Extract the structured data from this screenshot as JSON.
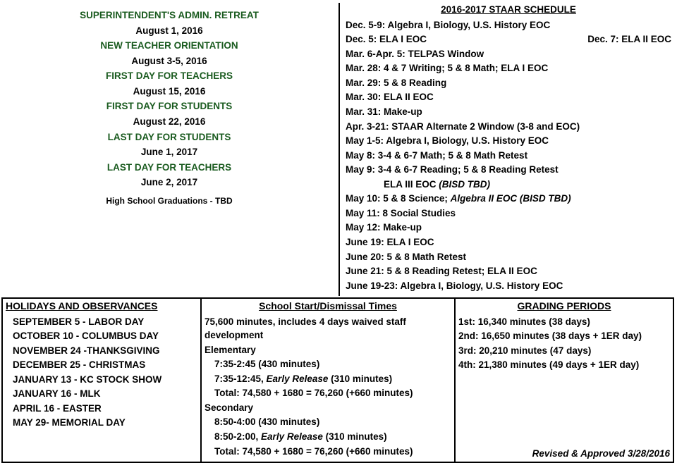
{
  "keyDates": {
    "items": [
      {
        "header": "SUPERINTENDENT'S ADMIN. RETREAT",
        "date": "August 1, 2016"
      },
      {
        "header": "NEW TEACHER ORIENTATION",
        "date": "August 3-5, 2016"
      },
      {
        "header": "FIRST DAY FOR TEACHERS",
        "date": "August 15, 2016"
      },
      {
        "header": "FIRST DAY FOR STUDENTS",
        "date": "August 22, 2016"
      },
      {
        "header": "LAST DAY FOR STUDENTS",
        "date": "June 1, 2017"
      },
      {
        "header": "LAST DAY FOR TEACHERS",
        "date": "June 2, 2017"
      }
    ],
    "graduation": "High School Graduations - TBD",
    "header_color": "#1a5b1f"
  },
  "staar": {
    "title": "2016-2017 STAAR SCHEDULE",
    "lines": [
      "Dec. 5-9:  Algebra I, Biology, U.S. History EOC",
      {
        "left": "Dec. 5:  ELA I EOC",
        "right": "Dec. 7:  ELA II EOC"
      },
      "Mar. 6-Apr. 5:  TELPAS Window",
      "Mar. 28:  4 & 7 Writing; 5 & 8 Math; ELA I EOC",
      "Mar. 29:  5 & 8 Reading",
      "Mar. 30:  ELA II EOC",
      "Mar. 31:  Make-up",
      "Apr. 3-21:  STAAR Alternate 2 Window (3-8 and EOC)",
      "May 1-5:  Algebra I, Biology, U.S. History EOC",
      "May 8:  3-4 & 6-7 Math; 5 & 8 Math Retest",
      "May 9:  3-4 & 6-7 Reading; 5 & 8 Reading Retest",
      {
        "indent": true,
        "main": "ELA III EOC ",
        "sub": "(BISD TBD)"
      },
      {
        "main": "May 10:  5 & 8 Science; ",
        "sub": "Algebra II EOC (BISD TBD)"
      },
      "May 11:  8 Social Studies",
      "May 12:  Make-up",
      "June 19:  ELA I EOC",
      "June 20:  5 & 8 Math Retest",
      "June 21:  5 & 8 Reading Retest; ELA II EOC",
      "June 19-23:  Algebra I, Biology, U.S. History EOC"
    ]
  },
  "holidays": {
    "title": "HOLIDAYS AND OBSERVANCES",
    "items": [
      "SEPTEMBER 5 - LABOR DAY",
      "OCTOBER 10 - COLUMBUS DAY",
      "NOVEMBER 24 -THANKSGIVING",
      "DECEMBER 25 - CHRISTMAS",
      "JANUARY 13  - KC STOCK SHOW",
      "JANUARY 16 - MLK",
      "APRIL 16 - EASTER",
      "MAY 29- MEMORIAL DAY"
    ]
  },
  "times": {
    "title": "School Start/Dismissal Times",
    "summary": "75,600 minutes, includes 4 days waived staff development",
    "elementary": {
      "label": "Elementary",
      "regular": "7:35-2:45 (430 minutes)",
      "early_pre": "7:35-12:45, ",
      "early_ital": "Early Release ",
      "early_post": " (310 minutes)",
      "total": "Total:  74,580 + 1680 = 76,260 (+660 minutes)"
    },
    "secondary": {
      "label": "Secondary",
      "regular": "8:50-4:00 (430 minutes)",
      "early_pre": "8:50-2:00, ",
      "early_ital": "Early Release ",
      "early_post": " (310 minutes)",
      "total": "Total:  74,580 + 1680 = 76,260 (+660 minutes)"
    }
  },
  "grading": {
    "title": "GRADING PERIODS",
    "items": [
      "1st:  16,340 minutes (38 days)",
      "2nd: 16,650 minutes (38 days + 1ER day)",
      "3rd:  20,210 minutes (47 days)",
      "4th: 21,380 minutes (49 days + 1ER day)"
    ],
    "revised": "Revised & Approved 3/28/2016"
  }
}
